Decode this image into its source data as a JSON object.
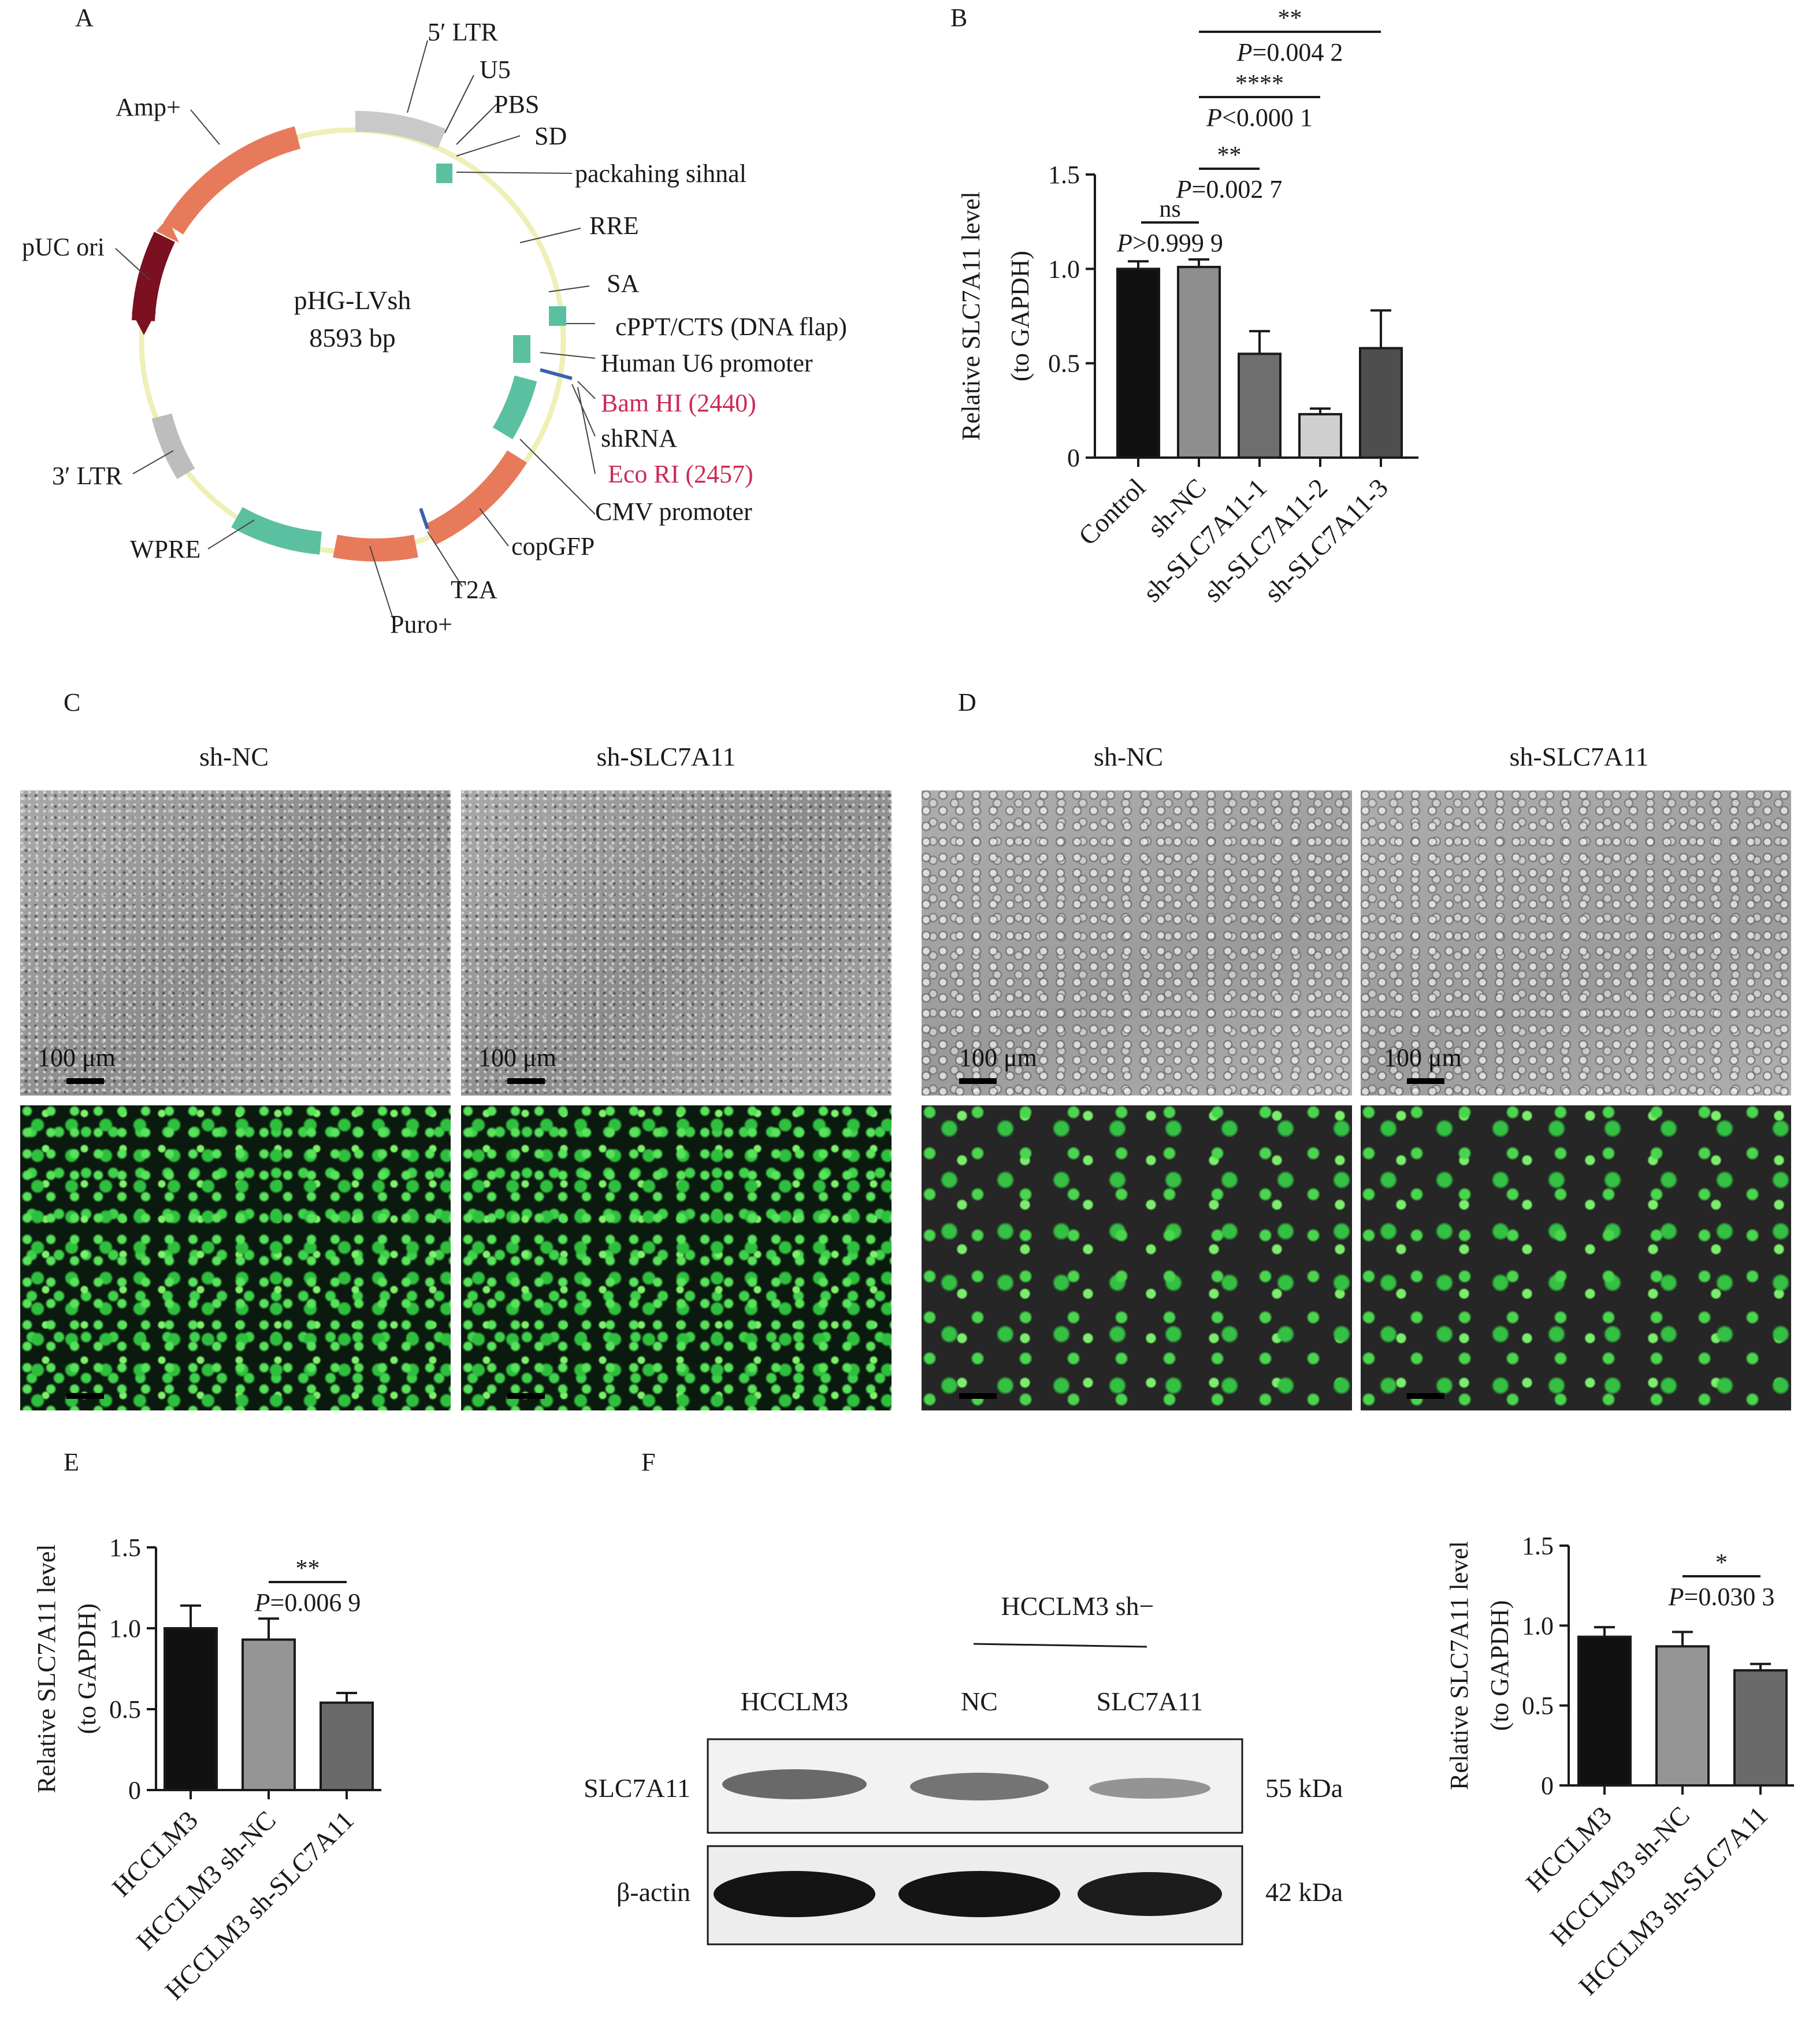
{
  "panels": {
    "A": {
      "label": "A",
      "plasmid_name": "pHG-LVsh",
      "plasmid_size": "8593 bp",
      "features": [
        "5′ LTR",
        "U5",
        "PBS",
        "SD",
        "packahing sihnal",
        "RRE",
        "SA",
        "cPPT/CTS (DNA flap)",
        "Human U6 promoter",
        "Bam HI (2440)",
        "shRNA",
        "Eco RI (2457)",
        "CMV promoter",
        "copGFP",
        "T2A",
        "Puro+",
        "WPRE",
        "3′ LTR",
        "pUC ori",
        "Amp+"
      ],
      "colors": {
        "backbone": "#eef0b8",
        "amp": "#e87a5c",
        "ori": "#7a1020",
        "green": "#5bc0a0",
        "site": "#cc2a57"
      }
    },
    "B": {
      "label": "B"
    },
    "C": {
      "label": "C",
      "col_titles": [
        "sh-NC",
        "sh-SLC7A11"
      ],
      "scale": "100 μm"
    },
    "D": {
      "label": "D",
      "col_titles": [
        "sh-NC",
        "sh-SLC7A11"
      ],
      "scale": "100 μm"
    },
    "E": {
      "label": "E"
    },
    "F": {
      "label": "F",
      "group_header": "HCCLM3 sh−",
      "lanes": [
        "HCCLM3",
        "NC",
        "SLC7A11"
      ],
      "rows": [
        {
          "protein": "SLC7A11",
          "mw": "55 kDa"
        },
        {
          "protein": "β-actin",
          "mw": "42 kDa"
        }
      ]
    }
  },
  "chart_data": [
    {
      "id": "B",
      "type": "bar",
      "ylabel": "Relative SLC7A11 level (to GAPDH)",
      "ylim": [
        0,
        1.5
      ],
      "yticks": [
        "0",
        "0.5",
        "1.0",
        "1.5"
      ],
      "categories": [
        "Control",
        "sh-NC",
        "sh-SLC7A11-1",
        "sh-SLC7A11-2",
        "sh-SLC7A11-3"
      ],
      "values": [
        1.0,
        1.01,
        0.55,
        0.23,
        0.58
      ],
      "errors": [
        0.04,
        0.04,
        0.12,
        0.03,
        0.2
      ],
      "colors": [
        "#111111",
        "#8e8e8e",
        "#6e6e6e",
        "#cfcfcf",
        "#4e4e4e"
      ],
      "annotations": [
        {
          "mark": "ns",
          "p": "P>0.999 9"
        },
        {
          "mark": "**",
          "p": "P=0.002 7"
        },
        {
          "mark": "****",
          "p": "P<0.000 1"
        },
        {
          "mark": "**",
          "p": "P=0.004 2"
        }
      ]
    },
    {
      "id": "E",
      "type": "bar",
      "ylabel": "Relative SLC7A11 level (to GAPDH)",
      "ylim": [
        0,
        1.5
      ],
      "yticks": [
        "0",
        "0.5",
        "1.0",
        "1.5"
      ],
      "categories": [
        "HCCLM3",
        "HCCLM3 sh-NC",
        "HCCLM3 sh-SLC7A11"
      ],
      "values": [
        1.0,
        0.93,
        0.54
      ],
      "errors": [
        0.14,
        0.13,
        0.06
      ],
      "colors": [
        "#111111",
        "#959595",
        "#6a6a6a"
      ],
      "annotations": [
        {
          "mark": "**",
          "p": "P=0.006 9"
        }
      ]
    },
    {
      "id": "F",
      "type": "bar",
      "ylabel": "Relative SLC7A11 level (to GAPDH)",
      "ylim": [
        0,
        1.5
      ],
      "yticks": [
        "0",
        "0.5",
        "1.0",
        "1.5"
      ],
      "categories": [
        "HCCLM3",
        "HCCLM3 sh-NC",
        "HCCLM3 sh-SLC7A11"
      ],
      "values": [
        0.93,
        0.87,
        0.72
      ],
      "errors": [
        0.06,
        0.09,
        0.04
      ],
      "colors": [
        "#111111",
        "#959595",
        "#6a6a6a"
      ],
      "annotations": [
        {
          "mark": "*",
          "p": "P=0.030 3"
        }
      ]
    }
  ]
}
